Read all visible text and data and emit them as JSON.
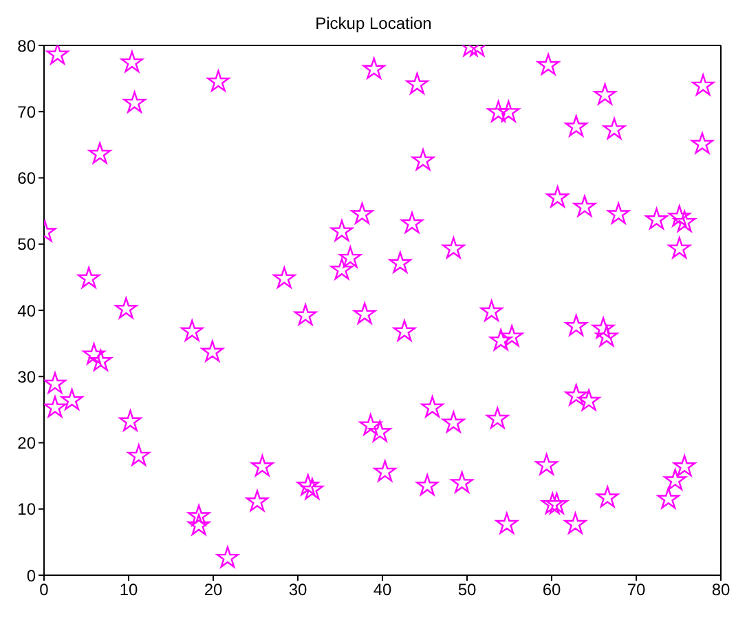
{
  "chart_data": {
    "type": "scatter",
    "title": "Pickup Location",
    "marker": "star",
    "grid": false,
    "legend": false,
    "xlim": [
      0,
      80
    ],
    "xticks": [
      0,
      10,
      20,
      30,
      40,
      50,
      60,
      70,
      80
    ],
    "ylim": [
      0,
      80
    ],
    "yticks": [
      0,
      10,
      20,
      30,
      40,
      50,
      60,
      70,
      80
    ],
    "series": [
      {
        "color": "#ff00ff",
        "x": [
          0.1,
          1.6,
          1.3,
          1.3,
          3.3,
          5.3,
          5.9,
          6.7,
          6.6,
          9.7,
          10.4,
          10.7,
          10.2,
          11.2,
          17.5,
          18.3,
          18.3,
          20.6,
          19.9,
          21.7,
          25.2,
          25.8,
          28.4,
          30.9,
          31.2,
          31.7,
          35.2,
          35.2,
          36.2,
          37.6,
          37.9,
          38.6,
          39.7,
          39.0,
          40.3,
          42.1,
          42.6,
          43.5,
          44.1,
          44.8,
          45.9,
          45.3,
          48.4,
          48.4,
          49.4,
          50.4,
          51.2,
          52.9,
          53.6,
          53.7,
          54.9,
          54.0,
          55.3,
          54.7,
          59.6,
          59.4,
          60.1,
          60.6,
          60.7,
          62.9,
          62.9,
          62.9,
          62.8,
          63.9,
          64.4,
          66.3,
          66.1,
          66.5,
          66.6,
          67.4,
          67.9,
          72.4,
          75.1,
          75.1,
          75.7,
          77.8,
          77.9,
          73.8,
          74.6,
          75.7
        ],
        "values": [
          51.8,
          78.6,
          28.9,
          25.3,
          26.4,
          44.8,
          33.3,
          32.3,
          63.6,
          40.2,
          77.4,
          71.3,
          23.2,
          18.0,
          36.8,
          8.9,
          7.5,
          74.5,
          33.7,
          2.6,
          11.1,
          16.4,
          44.8,
          39.2,
          13.5,
          12.9,
          51.9,
          46.1,
          47.9,
          54.5,
          39.4,
          22.6,
          21.6,
          76.4,
          15.6,
          47.1,
          36.8,
          53.1,
          74.1,
          62.6,
          25.3,
          13.5,
          49.3,
          23.0,
          13.9,
          79.8,
          79.8,
          39.8,
          23.6,
          69.9,
          69.9,
          35.4,
          36.0,
          7.7,
          77.0,
          16.6,
          10.7,
          10.7,
          57.0,
          67.7,
          37.6,
          27.1,
          7.7,
          55.6,
          26.3,
          72.5,
          37.2,
          36.0,
          11.7,
          67.3,
          54.5,
          53.7,
          49.3,
          54.1,
          53.3,
          65.1,
          73.9,
          11.5,
          14.3,
          16.4
        ]
      }
    ]
  }
}
